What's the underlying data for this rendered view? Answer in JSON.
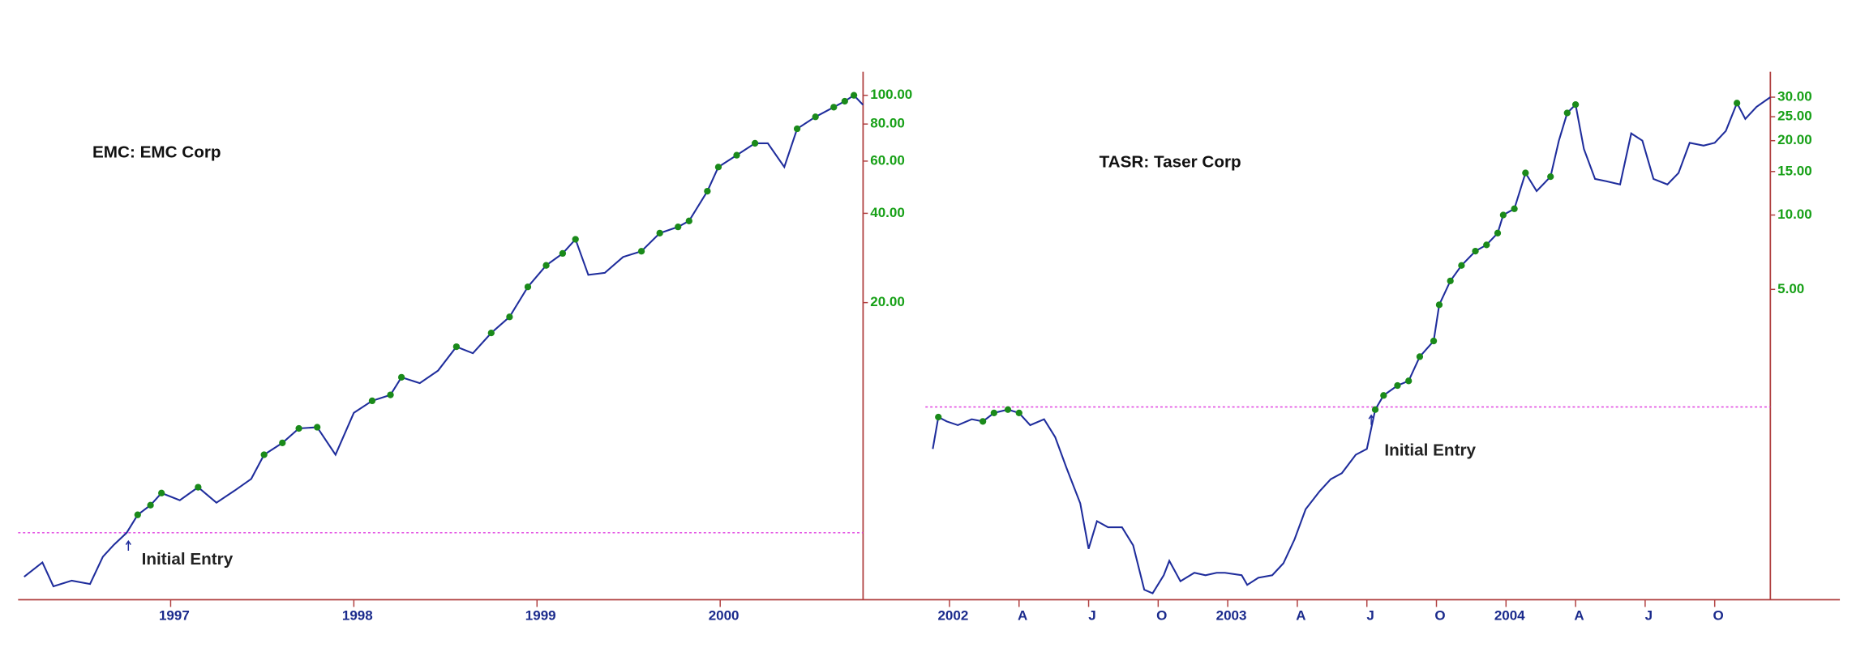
{
  "chart_data": [
    {
      "type": "line",
      "title": "EMC: EMC Corp",
      "annotation": "Initial Entry",
      "log_y": true,
      "entry_level": 3.35,
      "xlim": [
        1996.2,
        2000.78
      ],
      "xticks": [
        1997,
        1998,
        1999,
        2000
      ],
      "ylim": [
        2.01,
        120
      ],
      "yticks": [
        {
          "value": 20,
          "label": "20.00"
        },
        {
          "value": 40,
          "label": "40.00"
        },
        {
          "value": 60,
          "label": "60.00"
        },
        {
          "value": 80,
          "label": "80.00"
        },
        {
          "value": 100,
          "label": "100.00"
        }
      ],
      "x": [
        1996.2,
        1996.3,
        1996.36,
        1996.46,
        1996.56,
        1996.63,
        1996.69,
        1996.76,
        1996.82,
        1996.89,
        1996.95,
        1997.05,
        1997.15,
        1997.25,
        1997.35,
        1997.44,
        1997.51,
        1997.61,
        1997.7,
        1997.8,
        1997.9,
        1998.0,
        1998.1,
        1998.2,
        1998.26,
        1998.36,
        1998.46,
        1998.56,
        1998.65,
        1998.75,
        1998.85,
        1998.95,
        1999.05,
        1999.14,
        1999.21,
        1999.28,
        1999.37,
        1999.47,
        1999.57,
        1999.67,
        1999.77,
        1999.83,
        1999.93,
        1999.99,
        2000.09,
        2000.19,
        2000.26,
        2000.35,
        2000.42,
        2000.52,
        2000.62,
        2000.68,
        2000.73,
        2000.78
      ],
      "series": [
        {
          "color": "#1f2d9c",
          "values": [
            2.38,
            2.66,
            2.21,
            2.31,
            2.25,
            2.78,
            3.05,
            3.35,
            3.85,
            4.15,
            4.56,
            4.31,
            4.77,
            4.23,
            4.65,
            5.09,
            6.14,
            6.73,
            7.53,
            7.6,
            6.14,
            8.5,
            9.33,
            9.77,
            11.2,
            10.7,
            11.8,
            14.2,
            13.5,
            15.8,
            17.9,
            22.6,
            26.7,
            29.3,
            32.7,
            24.8,
            25.2,
            28.5,
            29.8,
            34.3,
            36.0,
            37.7,
            47.5,
            57.3,
            62.8,
            68.9,
            68.9,
            57.3,
            77.1,
            84.6,
            91.2,
            95.5,
            100,
            92.8
          ]
        },
        {
          "color": "#1a8a1a",
          "marker": "dot",
          "values": [
            null,
            null,
            null,
            null,
            null,
            null,
            null,
            null,
            3.85,
            4.15,
            4.56,
            null,
            4.77,
            null,
            null,
            null,
            6.14,
            6.73,
            7.53,
            7.6,
            null,
            null,
            9.33,
            9.77,
            11.2,
            null,
            null,
            14.2,
            null,
            15.8,
            17.9,
            22.6,
            26.7,
            29.3,
            32.7,
            null,
            null,
            null,
            29.8,
            34.3,
            36.0,
            37.7,
            47.5,
            57.3,
            62.8,
            68.9,
            null,
            null,
            77.1,
            84.6,
            91.2,
            95.5,
            100,
            null
          ]
        }
      ]
    },
    {
      "type": "line",
      "title": "TASR: Taser Corp",
      "annotation": "Initial Entry",
      "log_y": true,
      "entry_level": 1.67,
      "xlim": [
        2001.935,
        2004.95
      ],
      "xticks": [
        2002,
        {
          "value": 2002.25,
          "label": "A"
        },
        {
          "value": 2002.5,
          "label": "J"
        },
        {
          "value": 2002.75,
          "label": "O"
        },
        2003,
        {
          "value": 2003.25,
          "label": "A"
        },
        {
          "value": 2003.5,
          "label": "J"
        },
        {
          "value": 2003.75,
          "label": "O"
        },
        2004,
        {
          "value": 2004.25,
          "label": "A"
        },
        {
          "value": 2004.5,
          "label": "J"
        },
        {
          "value": 2004.75,
          "label": "O"
        }
      ],
      "ylim": [
        0.28,
        38
      ],
      "yticks": [
        {
          "value": 5,
          "label": "5.00"
        },
        {
          "value": 10,
          "label": "10.00"
        },
        {
          "value": 15,
          "label": "15.00"
        },
        {
          "value": 20,
          "label": "20.00"
        },
        {
          "value": 25,
          "label": "25.00"
        },
        {
          "value": 30,
          "label": "30.00"
        }
      ],
      "x": [
        2001.94,
        2001.96,
        2001.99,
        2002.03,
        2002.08,
        2002.12,
        2002.16,
        2002.21,
        2002.25,
        2002.29,
        2002.34,
        2002.38,
        2002.42,
        2002.47,
        2002.5,
        2002.53,
        2002.57,
        2002.62,
        2002.66,
        2002.7,
        2002.73,
        2002.77,
        2002.79,
        2002.83,
        2002.88,
        2002.92,
        2002.96,
        2002.99,
        2003.05,
        2003.07,
        2003.11,
        2003.16,
        2003.2,
        2003.24,
        2003.28,
        2003.33,
        2003.37,
        2003.41,
        2003.46,
        2003.5,
        2003.53,
        2003.56,
        2003.61,
        2003.65,
        2003.69,
        2003.74,
        2003.76,
        2003.8,
        2003.84,
        2003.89,
        2003.93,
        2003.97,
        2003.99,
        2004.03,
        2004.07,
        2004.11,
        2004.16,
        2004.19,
        2004.22,
        2004.25,
        2004.28,
        2004.32,
        2004.36,
        2004.41,
        2004.45,
        2004.49,
        2004.53,
        2004.58,
        2004.62,
        2004.66,
        2004.71,
        2004.75,
        2004.79,
        2004.83,
        2004.86,
        2004.9,
        2004.95
      ],
      "series": [
        {
          "color": "#1f2d9c",
          "values": [
            1.13,
            1.52,
            1.46,
            1.41,
            1.49,
            1.46,
            1.58,
            1.63,
            1.58,
            1.41,
            1.49,
            1.26,
            0.95,
            0.68,
            0.445,
            0.576,
            0.544,
            0.544,
            0.46,
            0.304,
            0.294,
            0.348,
            0.398,
            0.329,
            0.356,
            0.348,
            0.356,
            0.356,
            0.348,
            0.318,
            0.34,
            0.348,
            0.389,
            0.486,
            0.644,
            0.761,
            0.852,
            0.901,
            1.07,
            1.13,
            1.63,
            1.86,
            2.04,
            2.13,
            2.67,
            3.09,
            4.33,
            5.41,
            6.25,
            7.14,
            7.57,
            8.45,
            10.0,
            10.6,
            14.8,
            12.5,
            14.3,
            20.0,
            25.9,
            28.0,
            18.5,
            14.0,
            13.7,
            13.3,
            21.4,
            20.0,
            14.0,
            13.3,
            14.8,
            19.6,
            19.1,
            19.6,
            21.9,
            28.4,
            24.5,
            27.4,
            30
          ]
        },
        {
          "color": "#1a8a1a",
          "marker": "dot",
          "values": [
            null,
            1.52,
            null,
            null,
            null,
            1.46,
            1.58,
            1.63,
            1.58,
            null,
            null,
            null,
            null,
            null,
            null,
            null,
            null,
            null,
            null,
            null,
            null,
            null,
            null,
            null,
            null,
            null,
            null,
            null,
            null,
            null,
            null,
            null,
            null,
            null,
            null,
            null,
            null,
            null,
            null,
            null,
            1.63,
            1.86,
            2.04,
            2.13,
            2.67,
            3.09,
            4.33,
            5.41,
            6.25,
            7.14,
            7.57,
            8.45,
            10.0,
            10.6,
            14.8,
            null,
            14.3,
            null,
            25.9,
            28.0,
            null,
            null,
            null,
            null,
            null,
            null,
            null,
            null,
            null,
            null,
            null,
            null,
            null,
            28.4,
            null,
            null,
            null
          ]
        }
      ]
    }
  ]
}
